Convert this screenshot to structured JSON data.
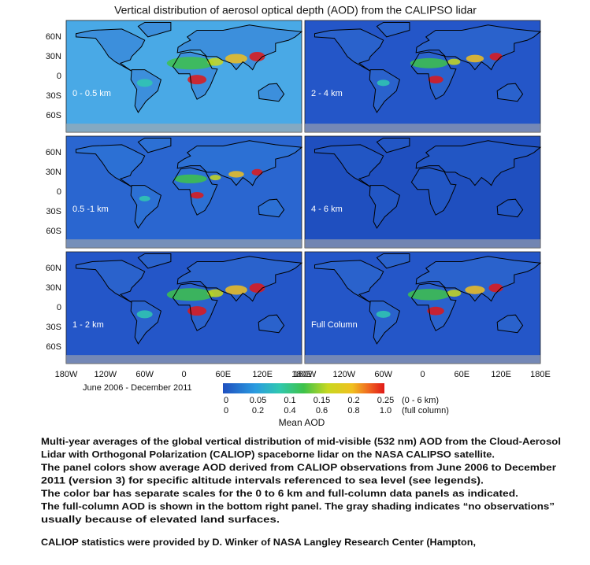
{
  "title": "Vertical distribution of aerosol optical depth (AOD) from the CALIPSO lidar",
  "panels": [
    {
      "label": "0 - 0.5 km"
    },
    {
      "label": "2 - 4 km"
    },
    {
      "label": "0.5 -1 km"
    },
    {
      "label": "4 - 6 km"
    },
    {
      "label": "1 - 2 km"
    },
    {
      "label": "Full Column"
    }
  ],
  "lat_labels": [
    "60N",
    "30N",
    "0",
    "30S",
    "60S"
  ],
  "lon_labels_left": [
    "180W",
    "120W",
    "60W",
    "0",
    "60E",
    "120E",
    "180E"
  ],
  "lon_labels_right": [
    "180W",
    "120W",
    "60W",
    "0",
    "60E",
    "120E",
    "180E"
  ],
  "date_range": "June 2006 - December 2011",
  "colorbar": {
    "scale_0_6km": {
      "ticks": [
        "0",
        "0.05",
        "0.1",
        "0.15",
        "0.2",
        "0.25"
      ],
      "note": "(0 - 6 km)"
    },
    "scale_full_column": {
      "ticks": [
        "0",
        "0.2",
        "0.4",
        "0.6",
        "0.8",
        "1.0"
      ],
      "note": "(full column)"
    },
    "label": "Mean AOD"
  },
  "caption": [
    "Multi-year averages of the global vertical distribution of mid-visible (532 nm) AOD from the Cloud-Aerosol",
    "Lidar with Orthogonal Polarization (CALIOP) spaceborne lidar on the NASA CALIPSO satellite.",
    "The panel colors show average AOD derived from CALIOP observations from June 2006 to December",
    "2011 (version 3)  for specific altitude intervals referenced to sea level (see legends).",
    "The color bar has separate scales for the 0 to 6 km and full-column data panels as indicated.",
    "The full-column AOD is shown in the bottom right panel. The gray shading indicates “no observations”",
    "usually because of elevated land surfaces."
  ],
  "credit": "CALIOP statistics were provided by D. Winker of NASA Langley Research Center (Hampton,"
}
